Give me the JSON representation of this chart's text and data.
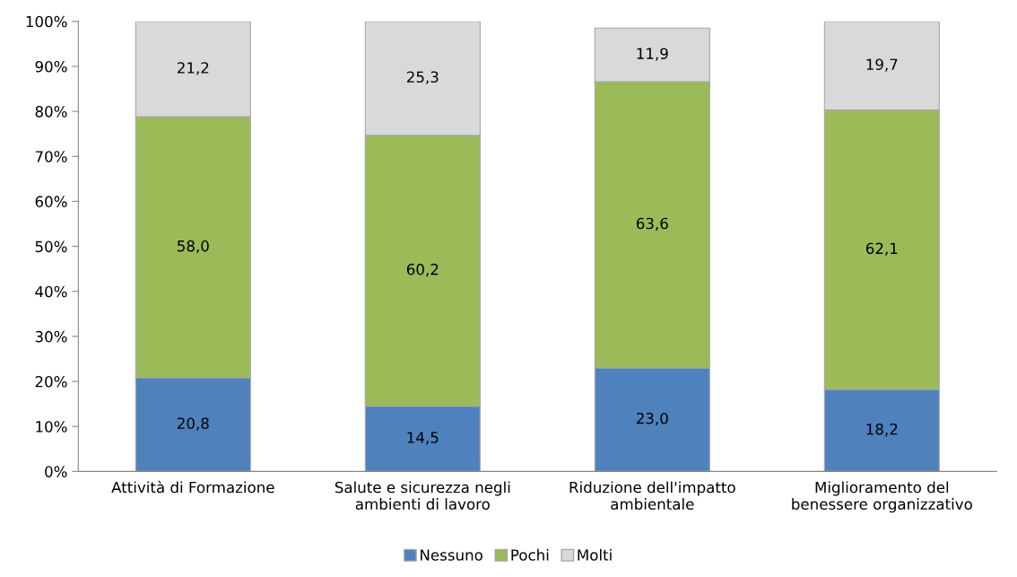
{
  "chart_data": {
    "type": "bar",
    "stacked": true,
    "categories": [
      "Attività di Formazione",
      "Salute e sicurezza negli\nambienti di lavoro",
      "Riduzione dell'impatto\nambientale",
      "Miglioramento del\nbenessere organizzativo"
    ],
    "series": [
      {
        "name": "Nessuno",
        "color": "#4f81bd",
        "values": [
          20.8,
          14.5,
          23.0,
          18.2
        ],
        "value_labels": [
          "20,8",
          "14,5",
          "23,0",
          "18,2"
        ]
      },
      {
        "name": "Pochi",
        "color": "#9bbb59",
        "values": [
          58.0,
          60.2,
          63.6,
          62.1
        ],
        "value_labels": [
          "58,0",
          "60,2",
          "63,6",
          "62,1"
        ]
      },
      {
        "name": "Molti",
        "color": "#d9d9d9",
        "values": [
          21.2,
          25.3,
          11.9,
          19.7
        ],
        "value_labels": [
          "21,2",
          "25,3",
          "11,9",
          "19,7"
        ]
      }
    ],
    "ylim": [
      0,
      100
    ],
    "yticks": [
      {
        "value": 0,
        "label": "0%"
      },
      {
        "value": 10,
        "label": "10%"
      },
      {
        "value": 20,
        "label": "20%"
      },
      {
        "value": 30,
        "label": "30%"
      },
      {
        "value": 40,
        "label": "40%"
      },
      {
        "value": 50,
        "label": "50%"
      },
      {
        "value": 60,
        "label": "60%"
      },
      {
        "value": 70,
        "label": "70%"
      },
      {
        "value": 80,
        "label": "80%"
      },
      {
        "value": 90,
        "label": "90%"
      },
      {
        "value": 100,
        "label": "100%"
      }
    ],
    "grid": false,
    "legend": "bottom"
  }
}
